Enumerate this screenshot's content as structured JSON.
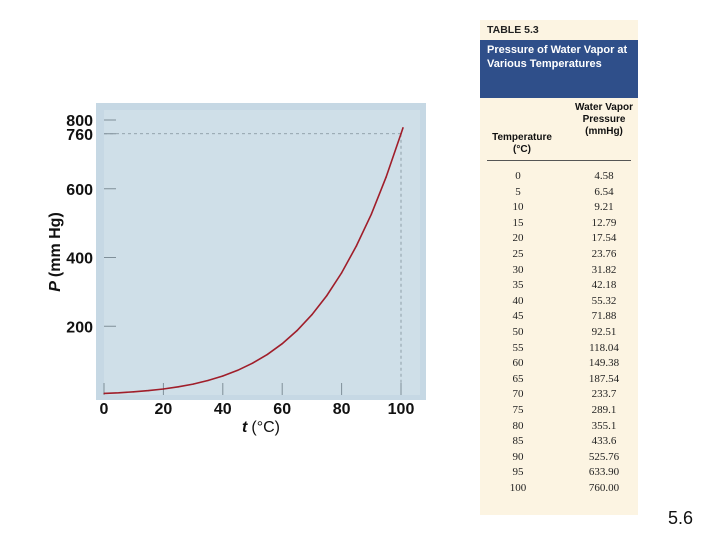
{
  "chart_data": {
    "type": "line",
    "xlabel_var": "t",
    "xlabel_unit": "(°C)",
    "ylabel_var": "P",
    "ylabel_unit": "(mm Hg)",
    "x_ticks": [
      0,
      20,
      40,
      60,
      80,
      100
    ],
    "y_ticks": [
      200,
      400,
      600,
      760,
      800
    ],
    "xlim": [
      0,
      100
    ],
    "ylim": [
      0,
      800
    ],
    "reference_lines": {
      "x": 100,
      "y": 760
    },
    "line_color": "#a01e2a",
    "plot_background": "#cfdfe8",
    "grid": false,
    "series": [
      {
        "x": [
          0,
          5,
          10,
          15,
          20,
          25,
          30,
          35,
          40,
          45,
          50,
          55,
          60,
          65,
          70,
          75,
          80,
          85,
          90,
          95,
          100
        ],
        "values": [
          4.58,
          6.54,
          9.21,
          12.79,
          17.54,
          23.76,
          31.82,
          42.18,
          55.32,
          71.88,
          92.51,
          118.04,
          149.38,
          187.54,
          233.7,
          289.1,
          355.1,
          433.6,
          525.76,
          633.9,
          760.0
        ]
      }
    ]
  },
  "table": {
    "label": "TABLE 5.3",
    "title": "Pressure of Water Vapor at Various Temperatures",
    "col1_header": "Temperature (°C)",
    "col2_header": "Water Vapor Pressure (mmHg)",
    "header_color": "#2f4f8a",
    "background": "#fcf4e2",
    "rows": [
      {
        "t": "0",
        "p": "4.58"
      },
      {
        "t": "5",
        "p": "6.54"
      },
      {
        "t": "10",
        "p": "9.21"
      },
      {
        "t": "15",
        "p": "12.79"
      },
      {
        "t": "20",
        "p": "17.54"
      },
      {
        "t": "25",
        "p": "23.76"
      },
      {
        "t": "30",
        "p": "31.82"
      },
      {
        "t": "35",
        "p": "42.18"
      },
      {
        "t": "40",
        "p": "55.32"
      },
      {
        "t": "45",
        "p": "71.88"
      },
      {
        "t": "50",
        "p": "92.51"
      },
      {
        "t": "55",
        "p": "118.04"
      },
      {
        "t": "60",
        "p": "149.38"
      },
      {
        "t": "65",
        "p": "187.54"
      },
      {
        "t": "70",
        "p": "233.7"
      },
      {
        "t": "75",
        "p": "289.1"
      },
      {
        "t": "80",
        "p": "355.1"
      },
      {
        "t": "85",
        "p": "433.6"
      },
      {
        "t": "90",
        "p": "525.76"
      },
      {
        "t": "95",
        "p": "633.90"
      },
      {
        "t": "100",
        "p": "760.00"
      }
    ]
  },
  "page_number": "5.6"
}
